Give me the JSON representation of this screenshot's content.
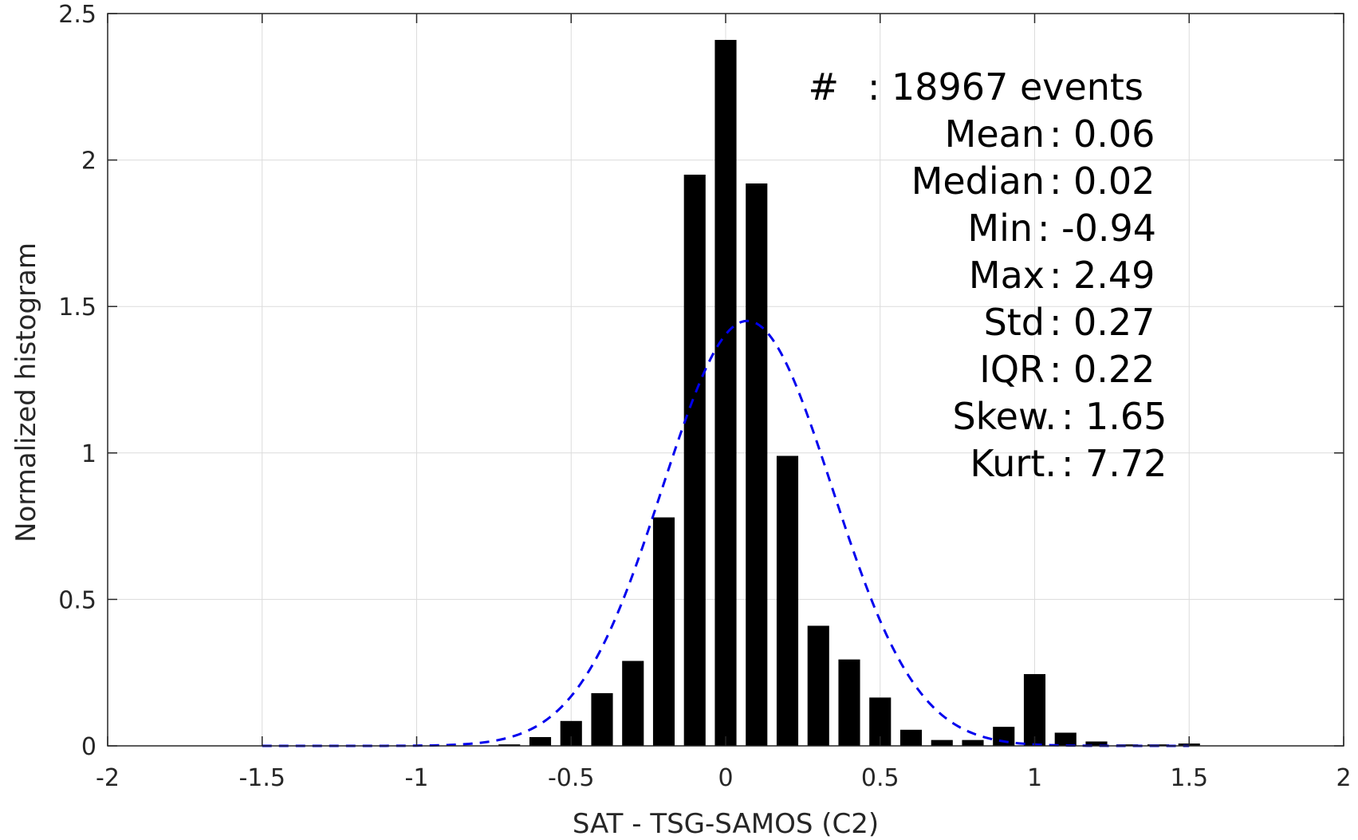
{
  "chart_data": {
    "type": "bar",
    "xlabel": "SAT - TSG-SAMOS (C2)",
    "ylabel": "Normalized histogram",
    "xlim": [
      -2,
      2
    ],
    "ylim": [
      0,
      2.5
    ],
    "xticks": [
      -2,
      -1.5,
      -1,
      -0.5,
      0,
      0.5,
      1,
      1.5,
      2
    ],
    "xtick_labels": [
      "-2",
      "-1.5",
      "-1",
      "-0.5",
      "0",
      "0.5",
      "1",
      "1.5",
      "2"
    ],
    "yticks": [
      0,
      0.5,
      1,
      1.5,
      2,
      2.5
    ],
    "ytick_labels": [
      "0",
      "0.5",
      "1",
      "1.5",
      "2",
      "2.5"
    ],
    "grid": true,
    "bar_width": 0.07,
    "bar_color": "#000000",
    "bins": [
      -0.7,
      -0.6,
      -0.5,
      -0.4,
      -0.3,
      -0.2,
      -0.1,
      0.0,
      0.1,
      0.2,
      0.3,
      0.4,
      0.5,
      0.6,
      0.7,
      0.8,
      0.9,
      1.0,
      1.1,
      1.2,
      1.3,
      1.4,
      1.5
    ],
    "values": [
      0.005,
      0.03,
      0.085,
      0.18,
      0.29,
      0.78,
      1.95,
      2.41,
      1.92,
      0.99,
      0.41,
      0.295,
      0.165,
      0.055,
      0.02,
      0.02,
      0.065,
      0.245,
      0.045,
      0.015,
      0.005,
      0.005,
      0.008
    ],
    "fit_curve": {
      "style": "dashed",
      "color": "#0000ee",
      "mean": 0.07,
      "std": 0.275,
      "x_range": [
        -1.5,
        1.5
      ]
    }
  },
  "stats": [
    {
      "label": "#  ",
      "value": "18967 events"
    },
    {
      "label": "Mean ",
      "value": "0.06"
    },
    {
      "label": "Median ",
      "value": "0.02"
    },
    {
      "label": "Min ",
      "value": "-0.94"
    },
    {
      "label": "Max ",
      "value": "2.49"
    },
    {
      "label": "Std ",
      "value": "0.27"
    },
    {
      "label": "IQR ",
      "value": "0.22"
    },
    {
      "label": "Skew. ",
      "value": "1.65"
    },
    {
      "label": "Kurt. ",
      "value": "7.72"
    }
  ]
}
